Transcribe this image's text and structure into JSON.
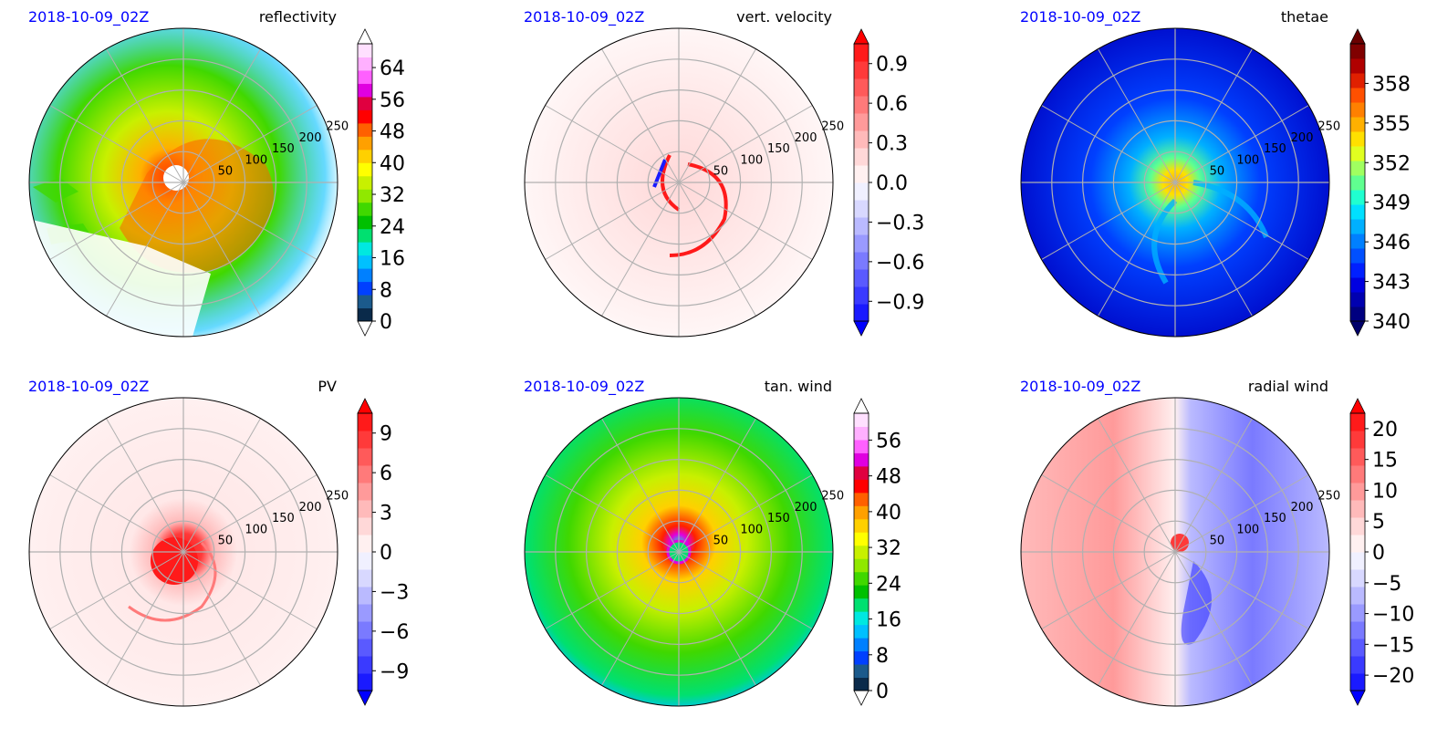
{
  "chart_data": [
    {
      "type": "heatmap",
      "projection": "polar",
      "date": "2018-10-09_02Z",
      "title": "reflectivity",
      "ring_labels": [
        "50",
        "100",
        "150",
        "200",
        "250"
      ],
      "colorbar": {
        "ticks": [
          "0",
          "8",
          "16",
          "24",
          "32",
          "40",
          "48",
          "56",
          "64"
        ],
        "range": [
          0,
          70
        ],
        "extend": "both",
        "colors": [
          "#0a2a4a",
          "#1b5a8c",
          "#0040ff",
          "#0080ff",
          "#00c0ff",
          "#00e8e0",
          "#00e070",
          "#00c000",
          "#40d800",
          "#90e800",
          "#c8f000",
          "#ffff00",
          "#ffd000",
          "#ffa000",
          "#ff6000",
          "#ff0000",
          "#e00040",
          "#e000e0",
          "#ff60ff",
          "#ffb0ff",
          "#ffe0ff"
        ],
        "under_color": "#ffffff",
        "over_color": "#ffffff"
      }
    },
    {
      "type": "heatmap",
      "projection": "polar",
      "date": "2018-10-09_02Z",
      "title": "vert. velocity",
      "ring_labels": [
        "50",
        "100",
        "150",
        "200",
        "250"
      ],
      "colorbar": {
        "ticks": [
          "−0.9",
          "−0.6",
          "−0.3",
          "0.0",
          "0.3",
          "0.6",
          "0.9"
        ],
        "range": [
          -1.05,
          1.05
        ],
        "extend": "both",
        "colors": [
          "#1a1aff",
          "#3a3aff",
          "#5a5aff",
          "#7a7aff",
          "#9a9aff",
          "#babaff",
          "#d8d8ff",
          "#f0f0ff",
          "#fff0f0",
          "#ffd8d8",
          "#ffbaba",
          "#ff9a9a",
          "#ff7a7a",
          "#ff5a5a",
          "#ff3a3a",
          "#ff1a1a"
        ],
        "under_color": "#0000ff",
        "over_color": "#ff0000"
      }
    },
    {
      "type": "heatmap",
      "projection": "polar",
      "date": "2018-10-09_02Z",
      "title": "thetae",
      "ring_labels": [
        "50",
        "100",
        "150",
        "200",
        "250"
      ],
      "colorbar": {
        "ticks": [
          "340",
          "343",
          "346",
          "349",
          "352",
          "355",
          "358"
        ],
        "range": [
          340,
          361
        ],
        "extend": "both",
        "colors": [
          "#000080",
          "#0000b0",
          "#0000e0",
          "#0020ff",
          "#0050ff",
          "#0080ff",
          "#00b0ff",
          "#00e0ff",
          "#20ffd0",
          "#60ff90",
          "#a0ff60",
          "#e0ff20",
          "#ffe000",
          "#ffb000",
          "#ff8000",
          "#ff5000",
          "#e02000",
          "#b00000",
          "#800000"
        ],
        "under_color": "#00006a",
        "over_color": "#6a0000"
      }
    },
    {
      "type": "heatmap",
      "projection": "polar",
      "date": "2018-10-09_02Z",
      "title": "PV",
      "ring_labels": [
        "50",
        "100",
        "150",
        "200",
        "250"
      ],
      "colorbar": {
        "ticks": [
          "−9",
          "−6",
          "−3",
          "0",
          "3",
          "6",
          "9"
        ],
        "range": [
          -10.5,
          10.5
        ],
        "extend": "both",
        "colors": [
          "#1a1aff",
          "#3a3aff",
          "#5a5aff",
          "#7a7aff",
          "#9a9aff",
          "#babaff",
          "#d8d8ff",
          "#f0f0ff",
          "#fff0f0",
          "#ffd8d8",
          "#ffbaba",
          "#ff9a9a",
          "#ff7a7a",
          "#ff5a5a",
          "#ff3a3a",
          "#ff1a1a"
        ],
        "under_color": "#0000ff",
        "over_color": "#ff0000"
      }
    },
    {
      "type": "heatmap",
      "projection": "polar",
      "date": "2018-10-09_02Z",
      "title": "tan. wind",
      "ring_labels": [
        "50",
        "100",
        "150",
        "200",
        "250"
      ],
      "colorbar": {
        "ticks": [
          "0",
          "8",
          "16",
          "24",
          "32",
          "40",
          "48",
          "56"
        ],
        "range": [
          0,
          62
        ],
        "extend": "both",
        "colors": [
          "#0a2a4a",
          "#1b5a8c",
          "#0040ff",
          "#0080ff",
          "#00c0ff",
          "#00e8e0",
          "#00e070",
          "#00c000",
          "#40d800",
          "#90e800",
          "#c8f000",
          "#ffff00",
          "#ffd000",
          "#ffa000",
          "#ff6000",
          "#ff0000",
          "#e00040",
          "#e000e0",
          "#ff60ff",
          "#ffb0ff",
          "#ffe0ff"
        ],
        "under_color": "#ffffff",
        "over_color": "#ffffff"
      }
    },
    {
      "type": "heatmap",
      "projection": "polar",
      "date": "2018-10-09_02Z",
      "title": "radial wind",
      "ring_labels": [
        "50",
        "100",
        "150",
        "200",
        "250"
      ],
      "colorbar": {
        "ticks": [
          "−20",
          "−15",
          "−10",
          "−5",
          "0",
          "5",
          "10",
          "15",
          "20"
        ],
        "range": [
          -22.5,
          22.5
        ],
        "extend": "both",
        "colors": [
          "#1a1aff",
          "#3a3aff",
          "#5a5aff",
          "#7a7aff",
          "#9a9aff",
          "#babaff",
          "#d8d8ff",
          "#f0f0ff",
          "#fff0f0",
          "#ffd8d8",
          "#ffbaba",
          "#ff9a9a",
          "#ff7a7a",
          "#ff5a5a",
          "#ff3a3a",
          "#ff1a1a"
        ],
        "under_color": "#0000ff",
        "over_color": "#ff0000"
      }
    }
  ]
}
